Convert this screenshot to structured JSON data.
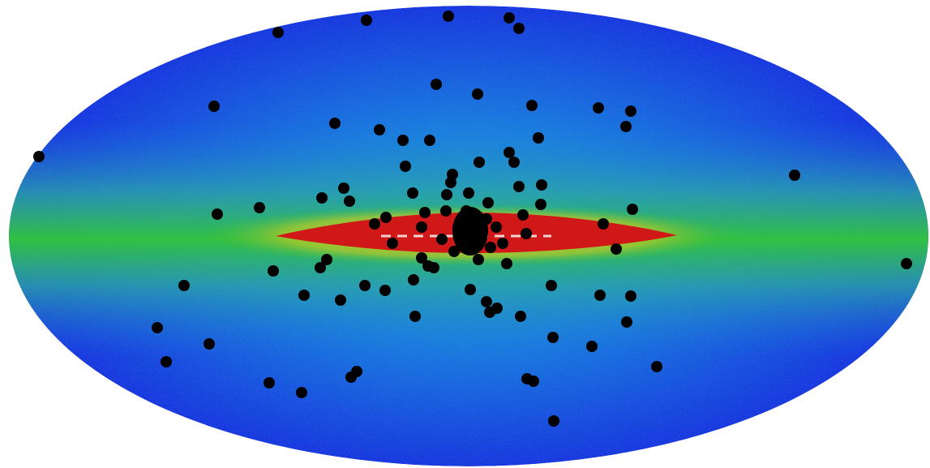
{
  "map": {
    "projection": "aitoff",
    "colors": {
      "background": "#ffffff",
      "sky_low": "#1838e0",
      "sky_mid": "#1a9be0",
      "plane_glow": "#20c040",
      "bulge_yellow": "#d8d020",
      "plane_core": "#d01818",
      "core_highlight": "#ffffff",
      "source_markers": "#000000"
    }
  }
}
